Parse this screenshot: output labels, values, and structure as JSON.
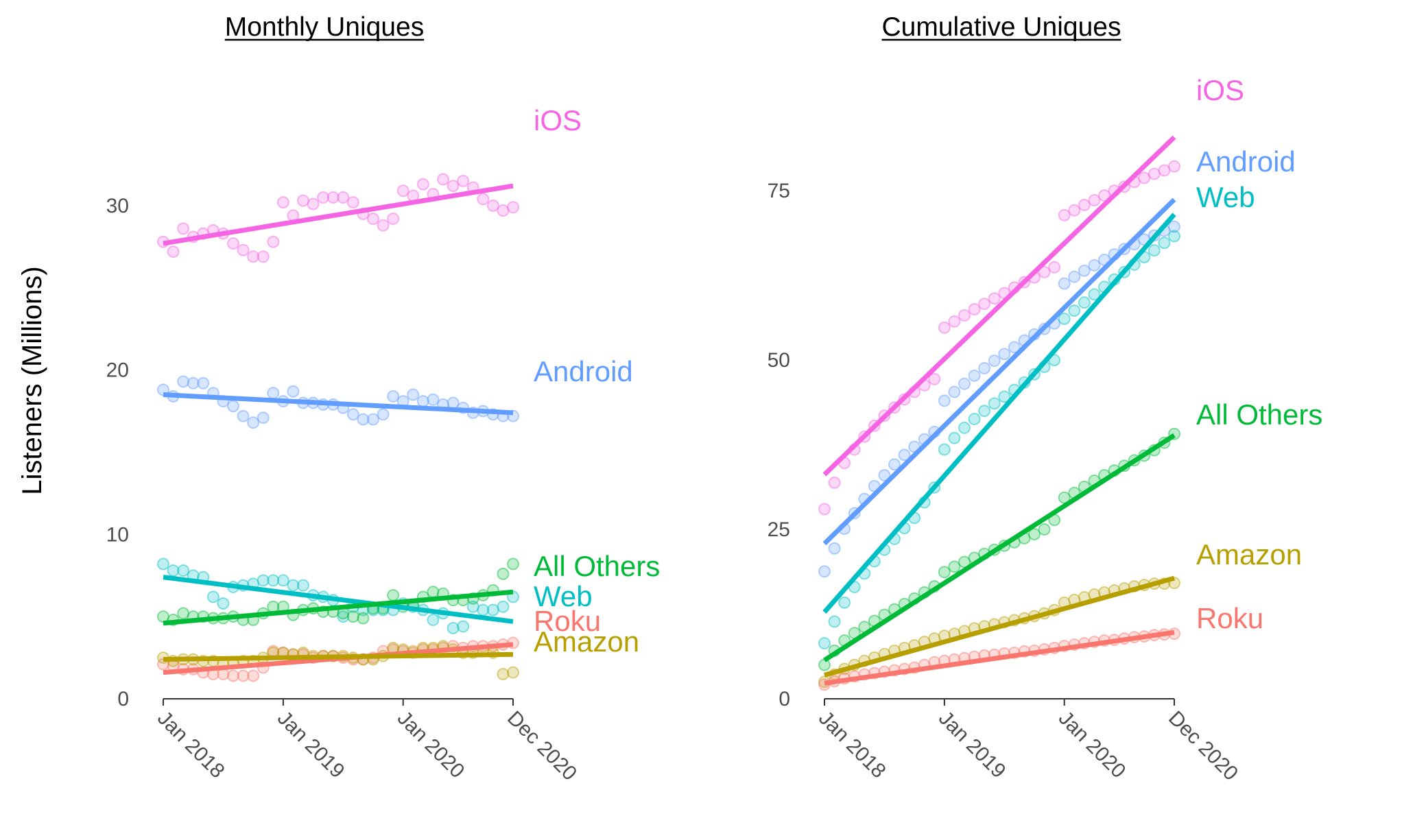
{
  "chart_data": [
    {
      "type": "scatter",
      "title": "Monthly Uniques",
      "ylabel": "Listeners (Millions)",
      "ylim": [
        0,
        35
      ],
      "xlim": [
        "2018-01",
        "2020-12"
      ],
      "x_ticks": [
        "2018-01",
        "2019-01",
        "2020-01",
        "2020-12"
      ],
      "x_tick_labels": [
        "Jan 2018",
        "Jan 2019",
        "Jan 2020",
        "Dec 2020"
      ],
      "y_ticks": [
        0,
        10,
        20,
        30
      ],
      "y_tick_labels": [
        "0",
        "10",
        "20",
        "30"
      ],
      "months": [
        "2018-01",
        "2018-02",
        "2018-03",
        "2018-04",
        "2018-05",
        "2018-06",
        "2018-07",
        "2018-08",
        "2018-09",
        "2018-10",
        "2018-11",
        "2018-12",
        "2019-01",
        "2019-02",
        "2019-03",
        "2019-04",
        "2019-05",
        "2019-06",
        "2019-07",
        "2019-08",
        "2019-09",
        "2019-10",
        "2019-11",
        "2019-12",
        "2020-01",
        "2020-02",
        "2020-03",
        "2020-04",
        "2020-05",
        "2020-06",
        "2020-07",
        "2020-08",
        "2020-09",
        "2020-10",
        "2020-11",
        "2020-12"
      ],
      "grid": false,
      "legend": "direct labels at right end of lines",
      "series": [
        {
          "name": "iOS",
          "color": "#F564E3",
          "values": [
            27.8,
            27.2,
            28.6,
            28.1,
            28.3,
            28.5,
            28.3,
            27.7,
            27.3,
            26.9,
            26.9,
            27.8,
            30.2,
            29.4,
            30.3,
            30.1,
            30.5,
            30.5,
            30.5,
            30.2,
            29.5,
            29.2,
            28.8,
            29.2,
            30.9,
            30.6,
            31.3,
            30.7,
            31.6,
            31.2,
            31.5,
            31.1,
            30.4,
            30.0,
            29.7,
            29.9
          ],
          "trend": [
            27.7,
            31.2
          ]
        },
        {
          "name": "Android",
          "color": "#619CFF",
          "values": [
            18.8,
            18.4,
            19.3,
            19.2,
            19.2,
            18.6,
            18.1,
            17.8,
            17.2,
            16.8,
            17.1,
            18.6,
            18.1,
            18.7,
            18.0,
            18.0,
            17.9,
            17.9,
            17.7,
            17.3,
            17.0,
            17.0,
            17.3,
            18.4,
            18.1,
            18.5,
            18.1,
            18.2,
            17.9,
            18.0,
            17.7,
            17.4,
            17.5,
            17.3,
            17.2,
            17.2
          ],
          "trend": [
            18.5,
            17.4
          ]
        },
        {
          "name": "Web",
          "color": "#00BFC4",
          "values": [
            8.2,
            7.8,
            7.8,
            7.5,
            7.4,
            6.2,
            5.8,
            6.8,
            6.9,
            7.0,
            7.2,
            7.2,
            7.2,
            6.9,
            6.9,
            6.3,
            6.2,
            6.0,
            5.0,
            5.6,
            5.4,
            5.4,
            5.4,
            5.4,
            5.8,
            5.6,
            5.4,
            4.8,
            5.2,
            4.3,
            4.4,
            5.6,
            5.4,
            5.4,
            5.6,
            6.2
          ],
          "trend": [
            7.4,
            4.7
          ]
        },
        {
          "name": "All Others",
          "color": "#00BA38",
          "values": [
            5.0,
            4.8,
            5.2,
            5.0,
            5.0,
            4.9,
            4.9,
            5.0,
            4.8,
            4.8,
            5.2,
            5.6,
            5.6,
            5.1,
            5.4,
            5.5,
            5.3,
            5.3,
            5.2,
            5.0,
            4.9,
            5.5,
            5.5,
            6.3,
            5.6,
            5.7,
            6.2,
            6.5,
            6.4,
            6.0,
            6.0,
            6.1,
            6.3,
            6.6,
            7.6,
            8.2
          ],
          "trend": [
            4.6,
            6.5
          ]
        },
        {
          "name": "Roku",
          "color": "#F8766D",
          "values": [
            2.1,
            2.0,
            1.8,
            1.8,
            1.6,
            1.5,
            1.5,
            1.4,
            1.4,
            1.4,
            1.9,
            2.9,
            2.8,
            2.7,
            2.7,
            2.5,
            2.6,
            2.6,
            2.5,
            2.4,
            2.4,
            2.5,
            2.9,
            3.0,
            2.9,
            2.8,
            3.0,
            3.0,
            3.1,
            3.2,
            3.1,
            3.2,
            3.2,
            3.2,
            3.3,
            3.4
          ],
          "trend": [
            1.6,
            3.3
          ]
        },
        {
          "name": "Amazon",
          "color": "#B79F00",
          "values": [
            2.5,
            2.3,
            2.4,
            2.4,
            2.3,
            2.3,
            2.2,
            2.2,
            2.3,
            2.3,
            2.5,
            2.8,
            2.8,
            2.7,
            2.8,
            2.6,
            2.6,
            2.6,
            2.6,
            2.5,
            2.4,
            2.4,
            2.6,
            3.1,
            3.0,
            2.9,
            3.1,
            3.1,
            3.2,
            3.0,
            2.8,
            2.8,
            2.9,
            2.8,
            1.5,
            1.6
          ],
          "trend": [
            2.4,
            2.7
          ]
        }
      ]
    },
    {
      "type": "scatter",
      "title": "Cumulative Uniques",
      "ylabel": "Listeners (Millions)",
      "ylim": [
        0,
        90
      ],
      "xlim": [
        "2018-01",
        "2020-12"
      ],
      "x_ticks": [
        "2018-01",
        "2019-01",
        "2020-01",
        "2020-12"
      ],
      "x_tick_labels": [
        "Jan 2018",
        "Jan 2019",
        "Jan 2020",
        "Dec 2020"
      ],
      "y_ticks": [
        0,
        25,
        50,
        75
      ],
      "y_tick_labels": [
        "0",
        "25",
        "50",
        "75"
      ],
      "months": [
        "2018-01",
        "2018-02",
        "2018-03",
        "2018-04",
        "2018-05",
        "2018-06",
        "2018-07",
        "2018-08",
        "2018-09",
        "2018-10",
        "2018-11",
        "2018-12",
        "2019-01",
        "2019-02",
        "2019-03",
        "2019-04",
        "2019-05",
        "2019-06",
        "2019-07",
        "2019-08",
        "2019-09",
        "2019-10",
        "2019-11",
        "2019-12",
        "2020-01",
        "2020-02",
        "2020-03",
        "2020-04",
        "2020-05",
        "2020-06",
        "2020-07",
        "2020-08",
        "2020-09",
        "2020-10",
        "2020-11",
        "2020-12"
      ],
      "grid": false,
      "legend": "direct labels at right end of lines",
      "series": [
        {
          "name": "iOS",
          "color": "#F564E3",
          "values": [
            28.0,
            31.9,
            34.8,
            36.8,
            38.7,
            40.3,
            41.8,
            43.0,
            44.2,
            45.3,
            46.3,
            47.2,
            54.8,
            55.7,
            56.6,
            57.5,
            58.3,
            59.1,
            59.9,
            60.7,
            61.5,
            62.2,
            63.0,
            63.7,
            71.4,
            72.1,
            72.9,
            73.6,
            74.3,
            75.0,
            75.6,
            76.3,
            76.9,
            77.5,
            78.0,
            78.6
          ],
          "trend": [
            33.1,
            82.9
          ]
        },
        {
          "name": "Android",
          "color": "#619CFF",
          "values": [
            18.8,
            22.2,
            25.1,
            27.4,
            29.5,
            31.4,
            33.0,
            34.6,
            36.0,
            37.2,
            38.3,
            39.4,
            44.0,
            45.3,
            46.5,
            47.7,
            48.8,
            49.9,
            50.9,
            51.9,
            52.9,
            53.8,
            54.6,
            55.4,
            61.3,
            62.3,
            63.2,
            64.0,
            64.8,
            65.6,
            66.4,
            67.1,
            67.8,
            68.4,
            69.1,
            69.7
          ],
          "trend": [
            22.9,
            73.7
          ]
        },
        {
          "name": "Web",
          "color": "#00BFC4",
          "values": [
            8.2,
            11.4,
            14.2,
            16.5,
            18.5,
            20.3,
            22.0,
            23.6,
            25.2,
            26.7,
            29.0,
            31.2,
            36.8,
            38.5,
            40.0,
            41.3,
            42.5,
            43.6,
            44.6,
            45.6,
            46.7,
            47.9,
            49.0,
            50.0,
            56.1,
            57.3,
            58.5,
            59.7,
            60.8,
            61.9,
            63.0,
            64.1,
            65.2,
            66.2,
            67.3,
            68.3
          ],
          "trend": [
            12.8,
            71.5
          ]
        },
        {
          "name": "All Others",
          "color": "#00BA38",
          "values": [
            5.0,
            7.1,
            8.6,
            9.7,
            10.6,
            11.5,
            12.4,
            13.2,
            14.0,
            14.8,
            15.7,
            16.6,
            18.7,
            19.5,
            20.2,
            20.8,
            21.4,
            22.0,
            22.6,
            23.1,
            23.7,
            24.3,
            25.0,
            26.4,
            29.7,
            30.4,
            31.3,
            32.2,
            33.0,
            33.7,
            34.4,
            35.2,
            35.9,
            36.7,
            37.8,
            39.1
          ],
          "trend": [
            5.7,
            38.9
          ]
        },
        {
          "name": "Amazon",
          "color": "#B79F00",
          "values": [
            2.5,
            3.6,
            4.4,
            5.0,
            5.6,
            6.1,
            6.6,
            7.1,
            7.5,
            7.9,
            8.4,
            8.9,
            9.3,
            9.6,
            10.0,
            10.4,
            10.7,
            11.0,
            11.3,
            11.6,
            11.9,
            12.2,
            12.6,
            13.1,
            14.2,
            14.6,
            15.0,
            15.4,
            15.7,
            16.0,
            16.3,
            16.6,
            16.8,
            17.0,
            17.0,
            17.1
          ],
          "trend": [
            3.5,
            17.8
          ]
        },
        {
          "name": "Roku",
          "color": "#F8766D",
          "values": [
            2.1,
            2.6,
            3.0,
            3.3,
            3.6,
            3.8,
            4.0,
            4.2,
            4.4,
            4.6,
            5.0,
            5.4,
            5.6,
            5.8,
            6.0,
            6.2,
            6.4,
            6.5,
            6.7,
            6.8,
            7.0,
            7.1,
            7.3,
            7.5,
            7.8,
            8.0,
            8.2,
            8.4,
            8.6,
            8.7,
            8.9,
            9.1,
            9.2,
            9.4,
            9.5,
            9.6
          ],
          "trend": [
            2.3,
            9.8
          ]
        }
      ]
    }
  ]
}
